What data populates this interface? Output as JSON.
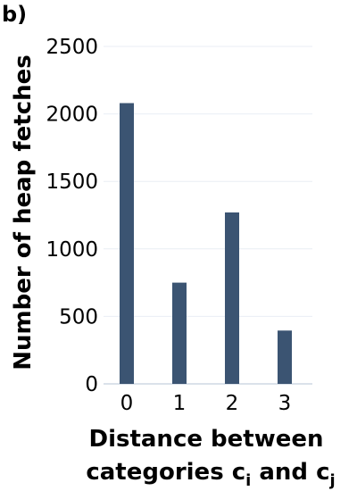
{
  "panel_label": "b)",
  "colors": {
    "bar": "#3b5472",
    "grid": "#e9eef4",
    "axis": "#cfd8e3",
    "text": "#000000"
  },
  "chart_data": {
    "type": "bar",
    "categories": [
      "0",
      "1",
      "2",
      "3"
    ],
    "values": [
      2080,
      750,
      1270,
      395
    ],
    "ylabel": "Number of heap fetches",
    "xlabel_line1": "Distance between",
    "xlabel_line2_prefix": "categories c",
    "xlabel_sub_i": "i",
    "xlabel_mid": " and c",
    "xlabel_sub_j": "j",
    "ylim": [
      0,
      2500
    ],
    "yticks": [
      "0",
      "500",
      "1000",
      "1500",
      "2000",
      "2500"
    ],
    "grid": true,
    "legend": "none"
  }
}
